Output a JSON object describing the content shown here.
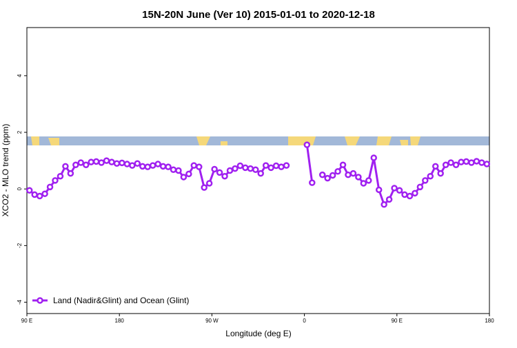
{
  "chart_data": {
    "type": "line",
    "title": "15N-20N June (Ver 10)   2015-01-01 to 2020-12-18",
    "x_label": "Longitude (deg E)",
    "y_label": "XCO2 - MLO trend (ppm)",
    "xlim": [
      90,
      540
    ],
    "xticks": [
      {
        "value": 90,
        "label": "90 E"
      },
      180,
      {
        "value": 270,
        "label": "90 W"
      },
      {
        "value": 360,
        "label": "0"
      },
      {
        "value": 450,
        "label": "90 E"
      },
      180
    ],
    "ylim": [
      -4.4,
      5.7
    ],
    "yticks": [
      -4,
      -2,
      0,
      2,
      4
    ],
    "legend": "bottom-left",
    "x": [
      92.5,
      97.5,
      102.5,
      107.5,
      112.5,
      117.5,
      122.5,
      127.5,
      132.5,
      137.5,
      142.5,
      147.5,
      152.5,
      157.5,
      162.5,
      167.5,
      172.5,
      177.5,
      182.5,
      187.5,
      192.5,
      197.5,
      202.5,
      207.5,
      212.5,
      217.5,
      222.5,
      227.5,
      232.5,
      237.5,
      242.5,
      247.5,
      252.5,
      257.5,
      262.5,
      267.5,
      272.5,
      277.5,
      282.5,
      287.5,
      292.5,
      297.5,
      302.5,
      307.5,
      312.5,
      317.5,
      322.5,
      327.5,
      332.5,
      337.5,
      342.5,
      347.5,
      352.5,
      357.5,
      362.5,
      367.5,
      372.5,
      377.5,
      382.5,
      387.5,
      392.5,
      397.5,
      402.5,
      407.5,
      412.5,
      417.5,
      422.5,
      427.5,
      432.5,
      437.5,
      442.5,
      447.5,
      452.5,
      457.5,
      462.5,
      467.5,
      472.5,
      477.5,
      482.5,
      487.5,
      492.5,
      497.5,
      502.5,
      507.5,
      512.5,
      517.5,
      522.5,
      527.5,
      532.5,
      537.5
    ],
    "series": [
      {
        "name": "Land (Nadir&Glint) and Ocean (Glint)",
        "color": "#a020f0",
        "values": [
          -0.05,
          -0.2,
          -0.25,
          -0.17,
          0.07,
          0.3,
          0.45,
          0.8,
          0.55,
          0.85,
          0.93,
          0.85,
          0.95,
          0.97,
          0.93,
          1.0,
          0.95,
          0.9,
          0.92,
          0.88,
          0.83,
          0.9,
          0.8,
          0.78,
          0.83,
          0.88,
          0.8,
          0.78,
          0.68,
          0.65,
          0.42,
          0.53,
          0.83,
          0.78,
          0.05,
          0.2,
          0.7,
          0.58,
          0.45,
          0.65,
          0.72,
          0.82,
          0.75,
          0.72,
          0.68,
          0.55,
          0.83,
          0.75,
          0.82,
          0.78,
          0.83,
          null,
          null,
          null,
          1.56,
          0.22,
          null,
          0.5,
          0.38,
          0.48,
          0.62,
          0.85,
          0.5,
          0.55,
          0.42,
          0.2,
          0.3,
          1.1,
          -0.03,
          -0.55,
          -0.37,
          0.03,
          -0.05,
          -0.2,
          -0.25,
          -0.15,
          0.07,
          0.3,
          0.45,
          0.8,
          0.55,
          0.85,
          0.93,
          0.85,
          0.95,
          0.97,
          0.93,
          0.98,
          0.93,
          0.88
        ]
      }
    ]
  }
}
